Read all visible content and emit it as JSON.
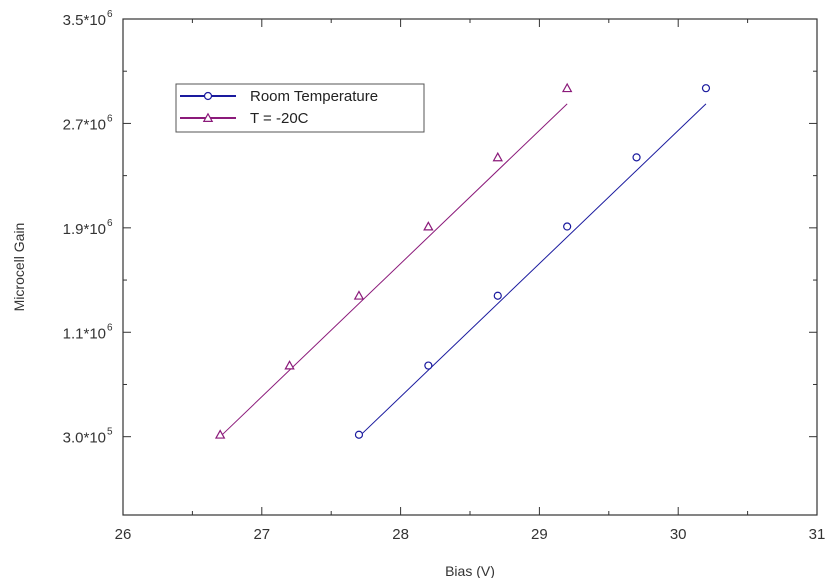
{
  "chart_data": {
    "type": "scatter",
    "xlabel": "Bias (V)",
    "ylabel": "Microcell Gain",
    "xlim": [
      26,
      31
    ],
    "ylim": [
      -300000,
      3500000
    ],
    "x_ticks": [
      26,
      27,
      28,
      29,
      30,
      31
    ],
    "x_tick_labels": [
      "26",
      "27",
      "28",
      "29",
      "30",
      "31"
    ],
    "y_ticks": [
      300000,
      1100000,
      1900000,
      2700000,
      3500000
    ],
    "y_tick_labels": [
      "3.0*10",
      "1.1*10",
      "1.9*10",
      "2.7*10",
      "3.5*10"
    ],
    "y_tick_exponents": [
      "5",
      "6",
      "6",
      "6",
      "6"
    ],
    "grid": false,
    "legend_position": "top-left",
    "series": [
      {
        "name": "Room Temperature",
        "marker": "circle",
        "color": "#1a1a9e",
        "x": [
          27.7,
          28.2,
          28.7,
          29.2,
          29.7,
          30.2
        ],
        "y": [
          315000,
          845000,
          1380000,
          1910000,
          2440000,
          2970000
        ],
        "fit_x": [
          27.7,
          30.2
        ],
        "fit_y": [
          300000,
          2850000
        ]
      },
      {
        "name": "T = -20C",
        "marker": "triangle",
        "color": "#8b1a7a",
        "x": [
          26.7,
          27.2,
          27.7,
          28.2,
          28.7,
          29.2
        ],
        "y": [
          315000,
          845000,
          1380000,
          1910000,
          2440000,
          2970000
        ],
        "fit_x": [
          26.7,
          29.2
        ],
        "fit_y": [
          300000,
          2850000
        ]
      }
    ]
  }
}
